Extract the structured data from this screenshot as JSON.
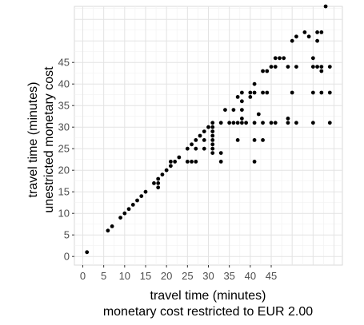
{
  "chart_data": {
    "type": "scatter",
    "xlabel": [
      "travel time (minutes)",
      "monetary cost restricted to EUR 2.00"
    ],
    "ylabel": [
      "travel time (minutes)",
      "unestricted monetary cost"
    ],
    "xlim": [
      -2,
      62
    ],
    "ylim": [
      -2,
      58
    ],
    "xticks": [
      0,
      5,
      10,
      15,
      20,
      25,
      30,
      35,
      40,
      45
    ],
    "yticks": [
      0,
      5,
      10,
      15,
      20,
      25,
      30,
      35,
      40,
      45
    ],
    "grid": true,
    "legend": "none",
    "point_color": "#000000",
    "points": [
      [
        1,
        1
      ],
      [
        6,
        6
      ],
      [
        7,
        7
      ],
      [
        9,
        9
      ],
      [
        10,
        10
      ],
      [
        11,
        11
      ],
      [
        12,
        12
      ],
      [
        13,
        13
      ],
      [
        14,
        14
      ],
      [
        15,
        15
      ],
      [
        17,
        17
      ],
      [
        18,
        16
      ],
      [
        18,
        17
      ],
      [
        18,
        18
      ],
      [
        19,
        19
      ],
      [
        20,
        20
      ],
      [
        21,
        21
      ],
      [
        21,
        22
      ],
      [
        22,
        22
      ],
      [
        23,
        23
      ],
      [
        25,
        22
      ],
      [
        25,
        25
      ],
      [
        26,
        22
      ],
      [
        26,
        26
      ],
      [
        27,
        22
      ],
      [
        27,
        25
      ],
      [
        27,
        27
      ],
      [
        28,
        28
      ],
      [
        29,
        25
      ],
      [
        29,
        27
      ],
      [
        29,
        29
      ],
      [
        30,
        30
      ],
      [
        31,
        24
      ],
      [
        31,
        25
      ],
      [
        31,
        26
      ],
      [
        31,
        27
      ],
      [
        31,
        28
      ],
      [
        31,
        29
      ],
      [
        31,
        30
      ],
      [
        31,
        31
      ],
      [
        33,
        22
      ],
      [
        33,
        24
      ],
      [
        33,
        31
      ],
      [
        34,
        34
      ],
      [
        35,
        31
      ],
      [
        36,
        31
      ],
      [
        36,
        34
      ],
      [
        37,
        27
      ],
      [
        37,
        31
      ],
      [
        37,
        37
      ],
      [
        38,
        31
      ],
      [
        38,
        32
      ],
      [
        38,
        34
      ],
      [
        38,
        36
      ],
      [
        38,
        38
      ],
      [
        39,
        31
      ],
      [
        40,
        37
      ],
      [
        40,
        38
      ],
      [
        41,
        22
      ],
      [
        41,
        27
      ],
      [
        41,
        31
      ],
      [
        41,
        38
      ],
      [
        41,
        40
      ],
      [
        42,
        33
      ],
      [
        43,
        27
      ],
      [
        43,
        31
      ],
      [
        43,
        38
      ],
      [
        43,
        43
      ],
      [
        44,
        38
      ],
      [
        44,
        43
      ],
      [
        45,
        31
      ],
      [
        45,
        44
      ],
      [
        46,
        31
      ],
      [
        46,
        44
      ],
      [
        46,
        46
      ],
      [
        47,
        46
      ],
      [
        48,
        46
      ],
      [
        49,
        32
      ],
      [
        49,
        31
      ],
      [
        49,
        44
      ],
      [
        50,
        38
      ],
      [
        50,
        50
      ],
      [
        51,
        31
      ],
      [
        51,
        44
      ],
      [
        51,
        51
      ],
      [
        53,
        52
      ],
      [
        54,
        51
      ],
      [
        55,
        31
      ],
      [
        55,
        38
      ],
      [
        55,
        44
      ],
      [
        55,
        46
      ],
      [
        56,
        44
      ],
      [
        56,
        50
      ],
      [
        56,
        52
      ],
      [
        57,
        43
      ],
      [
        57,
        44
      ],
      [
        57,
        38
      ],
      [
        57,
        52
      ],
      [
        58,
        58
      ],
      [
        59,
        44
      ],
      [
        59,
        38
      ],
      [
        59,
        31
      ]
    ]
  }
}
